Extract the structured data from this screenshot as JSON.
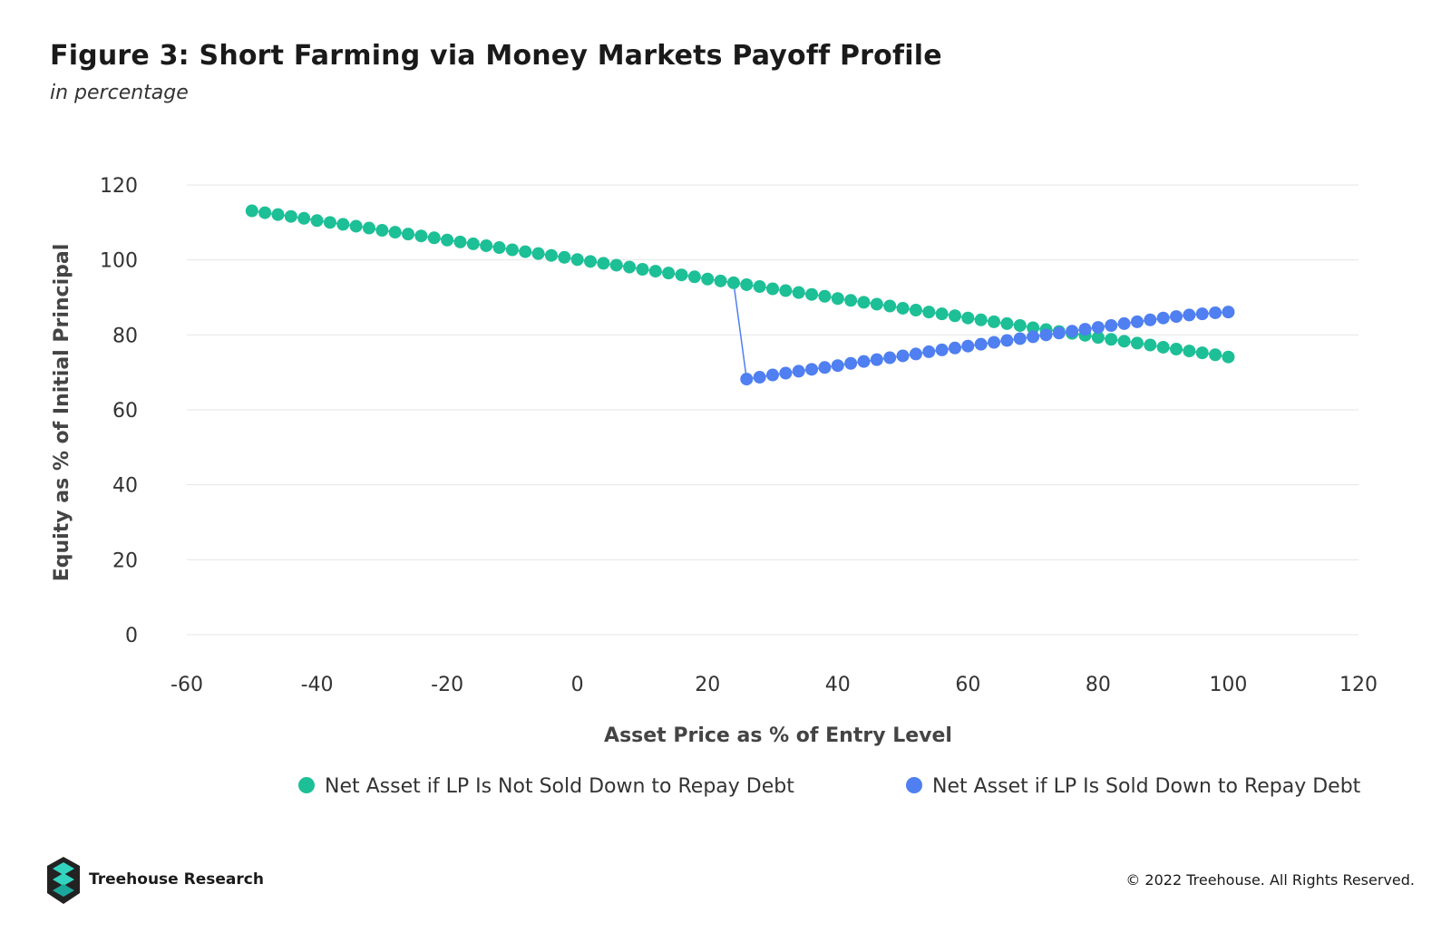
{
  "header": {
    "title": "Figure 3: Short Farming via Money Markets Payoff Profile",
    "subtitle": "in percentage"
  },
  "footer": {
    "brand": "Treehouse Research",
    "copyright": "© 2022 Treehouse. All Rights Reserved."
  },
  "colors": {
    "green": "#1dbf96",
    "blue": "#4f7ff0",
    "grid": "#e6e6e6"
  },
  "chart_data": {
    "type": "scatter",
    "xlabel": "Asset Price as % of Entry Level",
    "ylabel": "Equity as % of Initial Principal",
    "xlim": [
      -60,
      120
    ],
    "ylim": [
      0,
      120
    ],
    "xticks": [
      "-60",
      "-40",
      "-20",
      "0",
      "20",
      "40",
      "60",
      "80",
      "100",
      "120"
    ],
    "yticks": [
      "0",
      "20",
      "40",
      "60",
      "80",
      "100",
      "120"
    ],
    "grid": true,
    "legend_position": "bottom",
    "series": [
      {
        "name": "Net Asset if LP Is Not Sold Down to Repay Debt",
        "color": "#1dbf96",
        "x": [
          -50,
          -48,
          -46,
          -44,
          -42,
          -40,
          -38,
          -36,
          -34,
          -32,
          -30,
          -28,
          -26,
          -24,
          -22,
          -20,
          -18,
          -16,
          -14,
          -12,
          -10,
          -8,
          -6,
          -4,
          -2,
          0,
          2,
          4,
          6,
          8,
          10,
          12,
          14,
          16,
          18,
          20,
          22,
          24,
          26,
          28,
          30,
          32,
          34,
          36,
          38,
          40,
          42,
          44,
          46,
          48,
          50,
          52,
          54,
          56,
          58,
          60,
          62,
          64,
          66,
          68,
          70,
          72,
          74,
          76,
          78,
          80,
          82,
          84,
          86,
          88,
          90,
          92,
          94,
          96,
          98,
          100
        ],
        "y": [
          113.1,
          112.6,
          112.1,
          111.6,
          111.1,
          110.5,
          110.0,
          109.5,
          109.0,
          108.5,
          107.9,
          107.4,
          106.9,
          106.4,
          105.9,
          105.3,
          104.8,
          104.3,
          103.8,
          103.3,
          102.7,
          102.2,
          101.7,
          101.2,
          100.7,
          100.1,
          99.6,
          99.1,
          98.6,
          98.1,
          97.5,
          97.0,
          96.5,
          96.0,
          95.5,
          94.9,
          94.4,
          93.9,
          93.4,
          92.9,
          92.3,
          91.8,
          91.3,
          90.8,
          90.3,
          89.7,
          89.2,
          88.7,
          88.2,
          87.7,
          87.1,
          86.6,
          86.1,
          85.6,
          85.1,
          84.5,
          84.0,
          83.5,
          83.0,
          82.5,
          81.9,
          81.4,
          80.9,
          80.4,
          79.9,
          79.3,
          78.8,
          78.3,
          77.8,
          77.3,
          76.7,
          76.2,
          75.7,
          75.2,
          74.7,
          74.1
        ]
      },
      {
        "name": "Net Asset if LP Is Sold Down to Repay Debt",
        "color": "#4f7ff0",
        "x": [
          26,
          28,
          30,
          32,
          34,
          36,
          38,
          40,
          42,
          44,
          46,
          48,
          50,
          52,
          54,
          56,
          58,
          60,
          62,
          64,
          66,
          68,
          70,
          72,
          74,
          76,
          78,
          80,
          82,
          84,
          86,
          88,
          90,
          92,
          94,
          96,
          98,
          100
        ],
        "y": [
          68.2,
          68.7,
          69.3,
          69.8,
          70.3,
          70.8,
          71.3,
          71.8,
          72.4,
          72.9,
          73.4,
          73.9,
          74.4,
          74.9,
          75.5,
          76.0,
          76.5,
          77.0,
          77.5,
          78.0,
          78.5,
          79.0,
          79.5,
          80.0,
          80.5,
          81.0,
          81.5,
          82.0,
          82.5,
          83.0,
          83.5,
          84.0,
          84.5,
          84.9,
          85.3,
          85.6,
          85.9,
          86.1
        ]
      }
    ]
  }
}
